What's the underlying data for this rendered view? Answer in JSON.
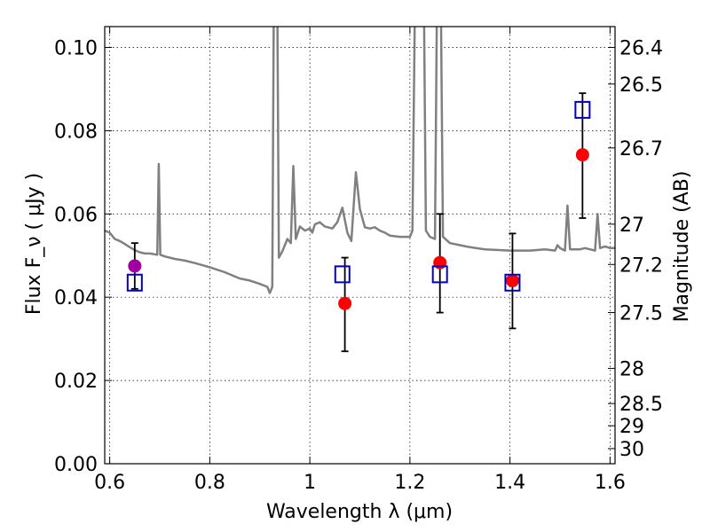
{
  "chart_data": {
    "type": "scatter",
    "xlabel": "Wavelength  λ (μm)",
    "ylabel": "Flux  F_ν  ( μJy )",
    "y2label": "Magnitude (AB)",
    "xlim": [
      0.59,
      1.61
    ],
    "ylim": [
      0.0,
      0.105
    ],
    "grid": true,
    "x_ticks": [
      "0.6",
      "0.8",
      "1",
      "1.2",
      "1.4",
      "1.6"
    ],
    "y_ticks": [
      "0.00",
      "0.02",
      "0.04",
      "0.06",
      "0.08",
      "0.10"
    ],
    "mag_ticks": [
      26.4,
      26.5,
      26.7,
      27,
      27.2,
      27.5,
      28,
      28.5,
      29,
      30
    ],
    "colors": {
      "template": "#808080",
      "model": "#0000cc",
      "observed": "#ff0000",
      "first_band": "#a000a0",
      "errorbar": "#000000"
    },
    "model_points": {
      "x": [
        0.65,
        1.065,
        1.26,
        1.405,
        1.545
      ],
      "y": [
        0.0435,
        0.0455,
        0.0455,
        0.0435,
        0.085
      ]
    },
    "observed_points": [
      {
        "x": 0.65,
        "y": 0.0475,
        "y_low": 0.042,
        "y_high": 0.053,
        "color": "#a000a0"
      },
      {
        "x": 1.07,
        "y": 0.0385,
        "y_low": 0.027,
        "y_high": 0.0495,
        "color": "#ff0000"
      },
      {
        "x": 1.26,
        "y": 0.0483,
        "y_low": 0.0363,
        "y_high": 0.06,
        "color": "#ff0000"
      },
      {
        "x": 1.405,
        "y": 0.044,
        "y_low": 0.0325,
        "y_high": 0.0553,
        "color": "#ff0000"
      },
      {
        "x": 1.545,
        "y": 0.0742,
        "y_low": 0.059,
        "y_high": 0.089,
        "color": "#ff0000"
      }
    ],
    "template_spectrum": [
      [
        0.59,
        0.056
      ],
      [
        0.6,
        0.0555
      ],
      [
        0.61,
        0.054
      ],
      [
        0.62,
        0.0535
      ],
      [
        0.63,
        0.0528
      ],
      [
        0.64,
        0.052
      ],
      [
        0.65,
        0.0513
      ],
      [
        0.66,
        0.0508
      ],
      [
        0.67,
        0.0505
      ],
      [
        0.68,
        0.0505
      ],
      [
        0.69,
        0.0503
      ],
      [
        0.695,
        0.0502
      ],
      [
        0.698,
        0.072
      ],
      [
        0.701,
        0.0502
      ],
      [
        0.71,
        0.0498
      ],
      [
        0.73,
        0.0492
      ],
      [
        0.75,
        0.0488
      ],
      [
        0.77,
        0.0482
      ],
      [
        0.8,
        0.0472
      ],
      [
        0.83,
        0.046
      ],
      [
        0.86,
        0.0445
      ],
      [
        0.88,
        0.044
      ],
      [
        0.9,
        0.0432
      ],
      [
        0.915,
        0.0425
      ],
      [
        0.92,
        0.041
      ],
      [
        0.925,
        0.0425
      ],
      [
        0.928,
        0.11
      ],
      [
        0.935,
        0.11
      ],
      [
        0.938,
        0.0495
      ],
      [
        0.945,
        0.051
      ],
      [
        0.955,
        0.054
      ],
      [
        0.962,
        0.053
      ],
      [
        0.967,
        0.0715
      ],
      [
        0.972,
        0.054
      ],
      [
        0.98,
        0.057
      ],
      [
        0.99,
        0.056
      ],
      [
        1.0,
        0.0565
      ],
      [
        1.005,
        0.0555
      ],
      [
        1.01,
        0.0575
      ],
      [
        1.02,
        0.058
      ],
      [
        1.03,
        0.057
      ],
      [
        1.045,
        0.0565
      ],
      [
        1.055,
        0.058
      ],
      [
        1.065,
        0.0615
      ],
      [
        1.075,
        0.0555
      ],
      [
        1.083,
        0.0535
      ],
      [
        1.092,
        0.07
      ],
      [
        1.1,
        0.0612
      ],
      [
        1.11,
        0.0568
      ],
      [
        1.12,
        0.0565
      ],
      [
        1.13,
        0.0568
      ],
      [
        1.14,
        0.056
      ],
      [
        1.15,
        0.0555
      ],
      [
        1.16,
        0.0548
      ],
      [
        1.18,
        0.0545
      ],
      [
        1.2,
        0.0545
      ],
      [
        1.205,
        0.056
      ],
      [
        1.21,
        0.11
      ],
      [
        1.228,
        0.11
      ],
      [
        1.232,
        0.056
      ],
      [
        1.24,
        0.0545
      ],
      [
        1.25,
        0.054
      ],
      [
        1.254,
        0.11
      ],
      [
        1.262,
        0.11
      ],
      [
        1.266,
        0.0545
      ],
      [
        1.28,
        0.053
      ],
      [
        1.3,
        0.0525
      ],
      [
        1.32,
        0.052
      ],
      [
        1.35,
        0.0515
      ],
      [
        1.4,
        0.0512
      ],
      [
        1.44,
        0.0512
      ],
      [
        1.47,
        0.0515
      ],
      [
        1.49,
        0.0512
      ],
      [
        1.495,
        0.0525
      ],
      [
        1.5,
        0.0518
      ],
      [
        1.505,
        0.0515
      ],
      [
        1.51,
        0.0512
      ],
      [
        1.515,
        0.062
      ],
      [
        1.52,
        0.0515
      ],
      [
        1.54,
        0.0515
      ],
      [
        1.55,
        0.0518
      ],
      [
        1.56,
        0.0515
      ],
      [
        1.57,
        0.0512
      ],
      [
        1.575,
        0.06
      ],
      [
        1.58,
        0.0518
      ],
      [
        1.59,
        0.0522
      ],
      [
        1.6,
        0.0518
      ],
      [
        1.61,
        0.0518
      ]
    ]
  }
}
